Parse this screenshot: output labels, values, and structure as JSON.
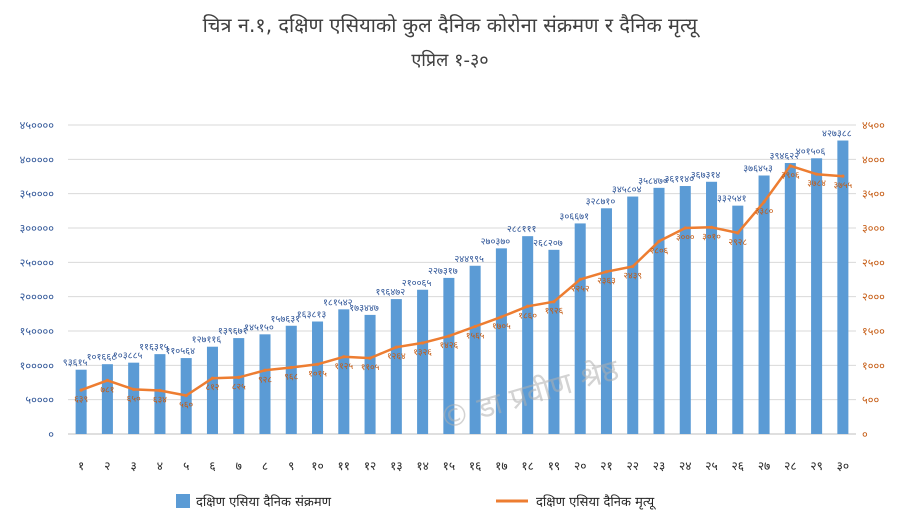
{
  "chart_data": {
    "type": "bar",
    "title": "चित्र न.१, दक्षिण एसियाको कुल दैनिक कोरोना संक्रमण र दैनिक मृत्यू",
    "subtitle": "एप्रिल १-३०",
    "categories": [
      "१",
      "२",
      "३",
      "४",
      "५",
      "६",
      "७",
      "८",
      "९",
      "१०",
      "११",
      "१२",
      "१३",
      "१४",
      "१५",
      "१६",
      "१७",
      "१८",
      "१९",
      "२०",
      "२१",
      "२२",
      "२३",
      "२४",
      "२५",
      "२६",
      "२७",
      "२८",
      "२९",
      "३०"
    ],
    "series": [
      {
        "name": "दक्षिण एसिया दैनिक  संक्रमण",
        "type": "bar",
        "axis": "left",
        "color": "#5b9bd5",
        "values": [
          93615,
          101668,
          103885,
          116315,
          110564,
          127116,
          139671,
          145150,
          157631,
          163813,
          181542,
          173447,
          196472,
          210065,
          227317,
          244995,
          270370,
          288111,
          268207,
          306671,
          328710,
          345804,
          358470,
          361140,
          367314,
          332541,
          376453,
          394622,
          401506,
          427388
        ],
        "labels": [
          "९३६१५",
          "१०१६६८",
          "१०३८८५",
          "११६३१५",
          "११०५६४",
          "१२७११६",
          "१३९६७१",
          "१४५१५०",
          "१५७६३१",
          "१६३८१३",
          "१८१५४२",
          "१७३४४७",
          "१९६४७२",
          "२१००६५",
          "२२७३१७",
          "२४४९९५",
          "२७०३७०",
          "२८८१११",
          "२६८२०७",
          "३०६६७१",
          "३२८७१०",
          "३४५८०४",
          "३५८४७०",
          "३६११४०",
          "३६७३१४",
          "३३२५४१",
          "३७६४५३",
          "३९४६२२",
          "४०१५०६",
          "४२७३८८"
        ]
      },
      {
        "name": "दक्षिण एसिया   दैनिक मृत्यू",
        "type": "line",
        "axis": "right",
        "color": "#ed7d31",
        "values": [
          639,
          781,
          650,
          634,
          560,
          812,
          825,
          928,
          968,
          1015,
          1125,
          1105,
          1264,
          1326,
          1426,
          1565,
          1705,
          1860,
          1926,
          2252,
          2363,
          2439,
          2806,
          3000,
          3010,
          2928,
          3380,
          3906,
          3784,
          3755
        ],
        "labels": [
          "६३९",
          "७८१",
          "६५०",
          "६३४",
          "५६०",
          "८१२",
          "८२५",
          "९२८",
          "९६८",
          "१०१५",
          "११२५",
          "११०५",
          "१२६४",
          "१३२६",
          "१४२६",
          "१५६५",
          "१७०५",
          "१८६०",
          "१९२६",
          "२२५२",
          "२३६३",
          "२४३९",
          "२८०६",
          "३०००",
          "३०१०",
          "२९२८",
          "३३८०",
          "३९०६",
          "३७८४",
          "३७५५"
        ]
      }
    ],
    "ylim": [
      0,
      450000
    ],
    "y2lim": [
      0,
      4500
    ],
    "yticks": [
      "०",
      "५००००",
      "१०००००",
      "१५००००",
      "२०००००",
      "२५००००",
      "३०००००",
      "३५००००",
      "४०००००",
      "४५००००"
    ],
    "y2ticks": [
      "०",
      "५००",
      "१०००",
      "१५००",
      "२०००",
      "२५००",
      "३०००",
      "३५००",
      "४०००",
      "४५००"
    ],
    "xlabel": "",
    "ylabel": "",
    "y2label": "",
    "grid": true,
    "legend": "bottom",
    "watermark": "© डा प्रवीण श्रेष्ठ",
    "colors": {
      "bar": "#5b9bd5",
      "line": "#ed7d31",
      "left_axis_text": "#2f5597",
      "right_axis_text": "#c55a11",
      "grid": "#d9d9d9"
    }
  }
}
